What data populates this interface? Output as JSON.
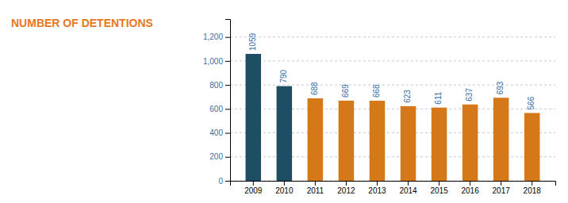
{
  "chart_data": {
    "type": "bar",
    "title": "NUMBER OF DETENTIONS",
    "categories": [
      "2009",
      "2010",
      "2011",
      "2012",
      "2013",
      "2014",
      "2015",
      "2016",
      "2017",
      "2018"
    ],
    "values": [
      1059,
      790,
      688,
      669,
      668,
      623,
      611,
      637,
      693,
      566
    ],
    "colors": [
      "#1d4e63",
      "#1d4e63",
      "#d4781a",
      "#d4781a",
      "#d4781a",
      "#d4781a",
      "#d4781a",
      "#d4781a",
      "#d4781a",
      "#d4781a"
    ],
    "ylim": [
      0,
      1350
    ],
    "yticks": [
      0,
      200,
      400,
      600,
      800,
      {
        "value": 1000,
        "label": "1,000"
      },
      {
        "value": 1200,
        "label": "1,200"
      }
    ],
    "grid": true,
    "data_labels": true
  }
}
